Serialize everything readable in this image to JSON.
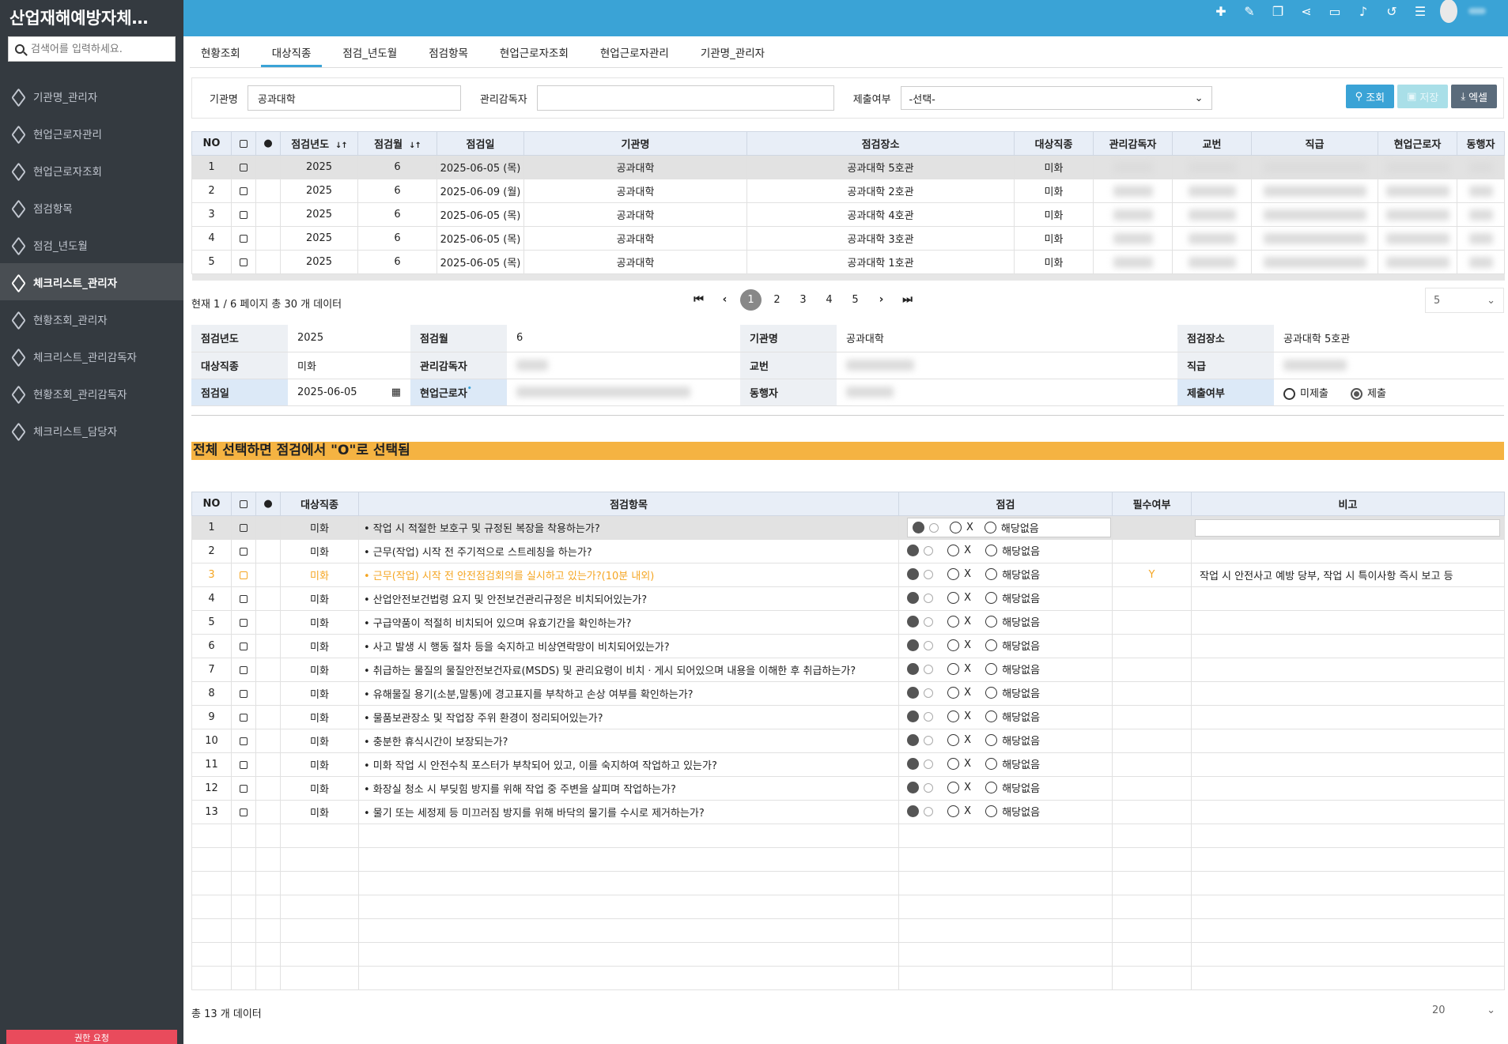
{
  "app": {
    "title": "산업재해예방자체…"
  },
  "sidebar": {
    "search_placeholder": "검색어를 입력하세요.",
    "items": [
      {
        "label": "기관명_관리자"
      },
      {
        "label": "현업근로자관리"
      },
      {
        "label": "현업근로자조회"
      },
      {
        "label": "점검항목"
      },
      {
        "label": "점검_년도월"
      },
      {
        "label": "체크리스트_관리자"
      },
      {
        "label": "현황조회_관리자"
      },
      {
        "label": "체크리스트_관리감독자"
      },
      {
        "label": "현황조회_관리감독자"
      },
      {
        "label": "체크리스트_담당자"
      }
    ],
    "bottom_label": "권한 요청"
  },
  "tabs": [
    {
      "label": "현황조회"
    },
    {
      "label": "대상직종"
    },
    {
      "label": "점검_년도월"
    },
    {
      "label": "점검항목"
    },
    {
      "label": "현업근로자조회"
    },
    {
      "label": "현업근로자관리"
    },
    {
      "label": "기관명_관리자"
    }
  ],
  "search": {
    "org_label": "기관명",
    "org_value": "공과대학",
    "supervisor_label": "관리감독자",
    "supervisor_value": "",
    "submit_label": "제출여부",
    "submit_value": "-선택-",
    "btn_search": "조회",
    "btn_save": "저장",
    "btn_excel": "엑셀"
  },
  "main_table": {
    "headers": [
      "NO",
      "",
      "",
      "점검년도",
      "점검월",
      "점검일",
      "기관명",
      "점검장소",
      "대상직종",
      "관리감독자",
      "교번",
      "직급",
      "현업근로자",
      "동행자"
    ],
    "rows": [
      {
        "no": "1",
        "year": "2025",
        "month": "6",
        "date": "2025-06-05 (목)",
        "org": "공과대학",
        "place": "공과대학 5호관",
        "job": "미화"
      },
      {
        "no": "2",
        "year": "2025",
        "month": "6",
        "date": "2025-06-09 (월)",
        "org": "공과대학",
        "place": "공과대학 2호관",
        "job": "미화"
      },
      {
        "no": "3",
        "year": "2025",
        "month": "6",
        "date": "2025-06-05 (목)",
        "org": "공과대학",
        "place": "공과대학 4호관",
        "job": "미화"
      },
      {
        "no": "4",
        "year": "2025",
        "month": "6",
        "date": "2025-06-05 (목)",
        "org": "공과대학",
        "place": "공과대학 3호관",
        "job": "미화"
      },
      {
        "no": "5",
        "year": "2025",
        "month": "6",
        "date": "2025-06-05 (목)",
        "org": "공과대학",
        "place": "공과대학 1호관",
        "job": "미화"
      }
    ]
  },
  "pager": {
    "info": "현재 1 / 6 페이지 총 30 개 데이터",
    "pages": [
      "1",
      "2",
      "3",
      "4",
      "5"
    ],
    "page_size": "5"
  },
  "detail": {
    "year_label": "점검년도",
    "year": "2025",
    "month_label": "점검월",
    "month": "6",
    "org_label": "기관명",
    "org": "공과대학",
    "place_label": "점검장소",
    "place": "공과대학 5호관",
    "job_label": "대상직종",
    "job": "미화",
    "supervisor_label": "관리감독자",
    "code_label": "교번",
    "rank_label": "직급",
    "date_label": "점검일",
    "date": "2025-06-05",
    "worker_label": "현업근로자",
    "companion_label": "동행자",
    "submit_label": "제출여부",
    "opt_not": "미제출",
    "opt_done": "제출"
  },
  "banner": "전체 선택하면 점검에서 \"O\"로 선택됨",
  "check_table": {
    "headers": [
      "NO",
      "",
      "",
      "대상직종",
      "점검항목",
      "점검",
      "필수여부",
      "비고"
    ],
    "opt_x": "X",
    "opt_na": "해당없음",
    "rows": [
      {
        "no": "1",
        "job": "미화",
        "item": "• 작업 시 적절한 보호구 및 규정된 복장을 착용하는가?",
        "req": "",
        "note": ""
      },
      {
        "no": "2",
        "job": "미화",
        "item": "• 근무(작업) 시작 전 주기적으로 스트레칭을 하는가?",
        "req": "",
        "note": ""
      },
      {
        "no": "3",
        "job": "미화",
        "item": "• 근무(작업) 시작 전 안전점검회의를 실시하고 있는가?(10분 내외)",
        "req": "Y",
        "note": "작업 시 안전사고 예방 당부, 작업 시 특이사항 즉시 보고 등"
      },
      {
        "no": "4",
        "job": "미화",
        "item": "• 산업안전보건법령 요지 및 안전보건관리규정은 비치되어있는가?",
        "req": "",
        "note": ""
      },
      {
        "no": "5",
        "job": "미화",
        "item": "• 구급약품이 적절히 비치되어 있으며 유효기간을 확인하는가?",
        "req": "",
        "note": ""
      },
      {
        "no": "6",
        "job": "미화",
        "item": "• 사고 발생 시 행동 절차 등을 숙지하고 비상연락망이 비치되어있는가?",
        "req": "",
        "note": ""
      },
      {
        "no": "7",
        "job": "미화",
        "item": "• 취급하는 물질의 물질안전보건자료(MSDS) 및 관리요령이 비치ㆍ게시 되어있으며 내용을 이해한 후 취급하는가?",
        "req": "",
        "note": ""
      },
      {
        "no": "8",
        "job": "미화",
        "item": "• 유해물질 용기(소분,말통)에 경고표지를 부착하고 손상 여부를 확인하는가?",
        "req": "",
        "note": ""
      },
      {
        "no": "9",
        "job": "미화",
        "item": "• 물품보관장소 및 작업장 주위 환경이 정리되어있는가?",
        "req": "",
        "note": ""
      },
      {
        "no": "10",
        "job": "미화",
        "item": "• 충분한 휴식시간이 보장되는가?",
        "req": "",
        "note": ""
      },
      {
        "no": "11",
        "job": "미화",
        "item": "• 미화 작업 시 안전수칙 포스터가 부착되어 있고, 이를 숙지하여 작업하고 있는가?",
        "req": "",
        "note": ""
      },
      {
        "no": "12",
        "job": "미화",
        "item": "• 화장실 청소 시 부딪힘 방지를 위해 작업 중 주변을 살피며 작업하는가?",
        "req": "",
        "note": ""
      },
      {
        "no": "13",
        "job": "미화",
        "item": "• 물기 또는 세정제 등 미끄러짐 방지를 위해 바닥의 물기를 수시로 제거하는가?",
        "req": "",
        "note": ""
      }
    ],
    "footer_info": "총 13 개 데이터",
    "page_size": "20"
  },
  "colors": {
    "topbar": "#3aa3d6",
    "sidebar": "#343a40",
    "banner": "#f5b342",
    "highlight_row": "#f5a623"
  }
}
